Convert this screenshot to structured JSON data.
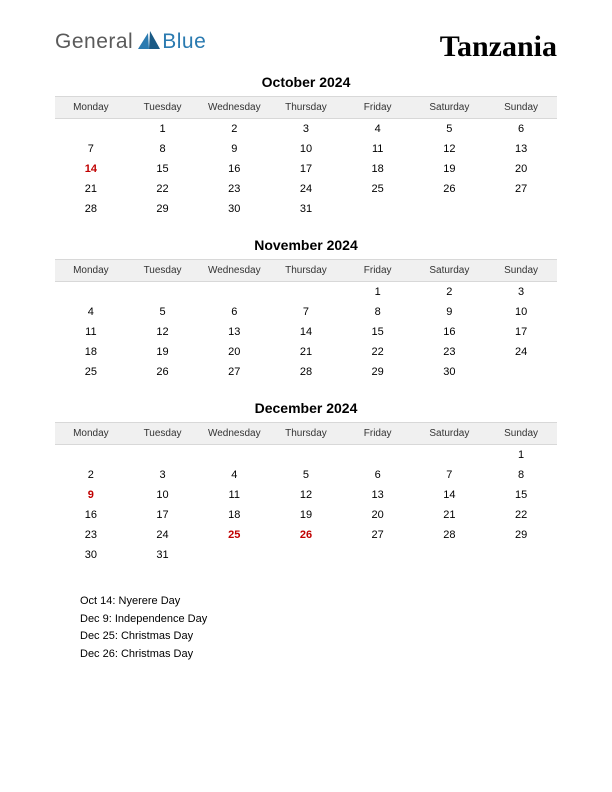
{
  "logo": {
    "general": "General",
    "blue": "Blue"
  },
  "country": "Tanzania",
  "weekdays": [
    "Monday",
    "Tuesday",
    "Wednesday",
    "Thursday",
    "Friday",
    "Saturday",
    "Sunday"
  ],
  "months": [
    {
      "title": "October 2024",
      "holidays": [
        14
      ],
      "rows": [
        [
          "",
          "1",
          "2",
          "3",
          "4",
          "5",
          "6"
        ],
        [
          "7",
          "8",
          "9",
          "10",
          "11",
          "12",
          "13"
        ],
        [
          "14",
          "15",
          "16",
          "17",
          "18",
          "19",
          "20"
        ],
        [
          "21",
          "22",
          "23",
          "24",
          "25",
          "26",
          "27"
        ],
        [
          "28",
          "29",
          "30",
          "31",
          "",
          "",
          ""
        ]
      ]
    },
    {
      "title": "November 2024",
      "holidays": [],
      "rows": [
        [
          "",
          "",
          "",
          "",
          "1",
          "2",
          "3"
        ],
        [
          "4",
          "5",
          "6",
          "7",
          "8",
          "9",
          "10"
        ],
        [
          "11",
          "12",
          "13",
          "14",
          "15",
          "16",
          "17"
        ],
        [
          "18",
          "19",
          "20",
          "21",
          "22",
          "23",
          "24"
        ],
        [
          "25",
          "26",
          "27",
          "28",
          "29",
          "30",
          ""
        ]
      ]
    },
    {
      "title": "December 2024",
      "holidays": [
        9,
        25,
        26
      ],
      "rows": [
        [
          "",
          "",
          "",
          "",
          "",
          "",
          "1"
        ],
        [
          "2",
          "3",
          "4",
          "5",
          "6",
          "7",
          "8"
        ],
        [
          "9",
          "10",
          "11",
          "12",
          "13",
          "14",
          "15"
        ],
        [
          "16",
          "17",
          "18",
          "19",
          "20",
          "21",
          "22"
        ],
        [
          "23",
          "24",
          "25",
          "26",
          "27",
          "28",
          "29"
        ],
        [
          "30",
          "31",
          "",
          "",
          "",
          "",
          ""
        ]
      ]
    }
  ],
  "holiday_list": [
    "Oct 14: Nyerere Day",
    "Dec 9: Independence Day",
    "Dec 25: Christmas Day",
    "Dec 26: Christmas Day"
  ],
  "colors": {
    "holiday": "#c00000",
    "header_bg": "#f0f0f0",
    "logo_gray": "#5a5a5a",
    "logo_blue": "#2a7ab0"
  }
}
